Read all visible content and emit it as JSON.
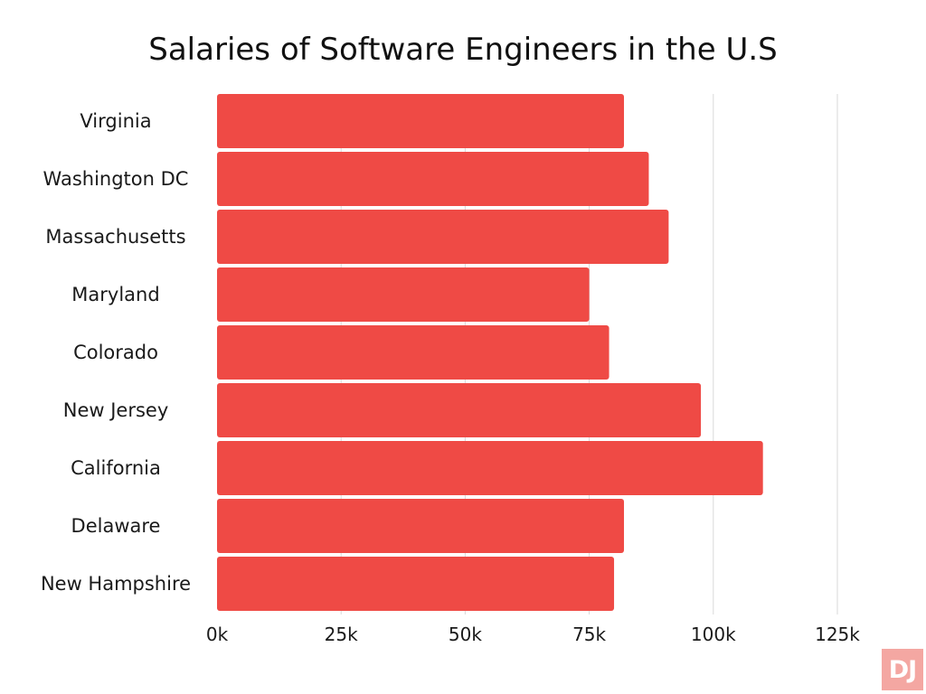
{
  "chart_data": {
    "type": "bar",
    "orientation": "horizontal",
    "title": "Salaries of Software Engineers in the U.S",
    "xlabel": "",
    "ylabel": "",
    "categories": [
      "Virginia",
      "Washington DC",
      "Massachusetts",
      "Maryland",
      "Colorado",
      "New Jersey",
      "California",
      "Delaware",
      "New Hampshire"
    ],
    "values": [
      82000,
      87000,
      91000,
      75000,
      79000,
      97500,
      110000,
      82000,
      80000
    ],
    "xlim": [
      0,
      125000
    ],
    "xticks": [
      0,
      25000,
      50000,
      75000,
      100000,
      125000
    ],
    "xtick_labels": [
      "0k",
      "25k",
      "50k",
      "75k",
      "100k",
      "125k"
    ],
    "grid": true,
    "colors": {
      "bar": "#ef4a45",
      "grid": "#d9d9d9"
    }
  },
  "logo": {
    "text": "DJ"
  }
}
